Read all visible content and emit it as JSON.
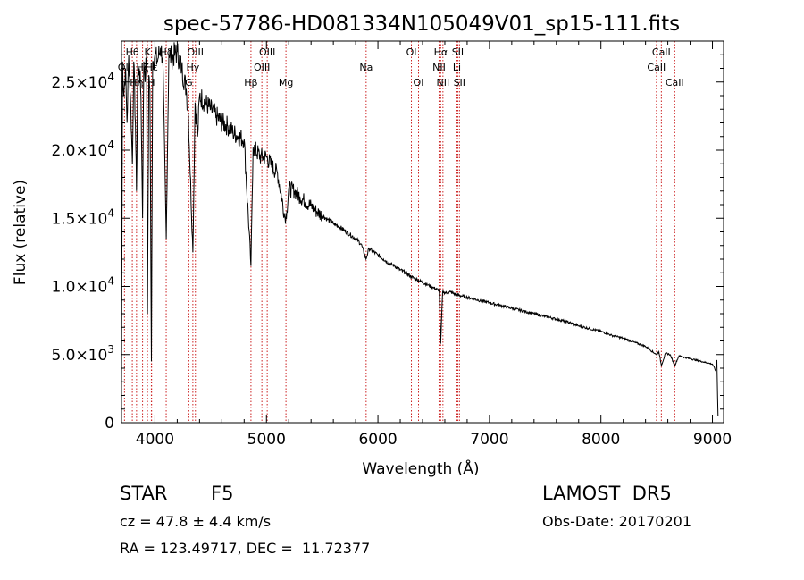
{
  "chart_data": {
    "type": "line",
    "title": "spec-57786-HD081334N105049V01_sp15-111.fits",
    "xlabel": "Wavelength (Å)",
    "ylabel": "Flux (relative)",
    "xlim": [
      3700,
      9100
    ],
    "ylim": [
      0,
      28000
    ],
    "x_ticks": [
      {
        "value": 4000,
        "label": "4000"
      },
      {
        "value": 5000,
        "label": "5000"
      },
      {
        "value": 6000,
        "label": "6000"
      },
      {
        "value": 7000,
        "label": "7000"
      },
      {
        "value": 8000,
        "label": "8000"
      },
      {
        "value": 9000,
        "label": "9000"
      }
    ],
    "y_ticks": [
      {
        "value": 0,
        "mant": "0",
        "exp": ""
      },
      {
        "value": 5000,
        "mant": "5.0×10",
        "exp": "3"
      },
      {
        "value": 10000,
        "mant": "1.0×10",
        "exp": "4"
      },
      {
        "value": 15000,
        "mant": "1.5×10",
        "exp": "4"
      },
      {
        "value": 20000,
        "mant": "2.0×10",
        "exp": "4"
      },
      {
        "value": 25000,
        "mant": "2.5×10",
        "exp": "4"
      }
    ],
    "series": [
      {
        "color": "#000000",
        "points": [
          [
            3700,
            2500
          ],
          [
            3710,
            26500
          ],
          [
            3720,
            24000
          ],
          [
            3735,
            26000
          ],
          [
            3750,
            22000
          ],
          [
            3765,
            27000
          ],
          [
            3780,
            24000
          ],
          [
            3798,
            19000
          ],
          [
            3810,
            26500
          ],
          [
            3825,
            22000
          ],
          [
            3835,
            17000
          ],
          [
            3845,
            25500
          ],
          [
            3860,
            26000
          ],
          [
            3875,
            24000
          ],
          [
            3889,
            15000
          ],
          [
            3900,
            26500
          ],
          [
            3915,
            25500
          ],
          [
            3925,
            27000
          ],
          [
            3933,
            8000
          ],
          [
            3945,
            25500
          ],
          [
            3955,
            24500
          ],
          [
            3968,
            4500
          ],
          [
            3980,
            26500
          ],
          [
            4000,
            27000
          ],
          [
            4020,
            26500
          ],
          [
            4050,
            27500
          ],
          [
            4070,
            26800
          ],
          [
            4101,
            13500
          ],
          [
            4125,
            27000
          ],
          [
            4150,
            26800
          ],
          [
            4200,
            27200
          ],
          [
            4240,
            26000
          ],
          [
            4280,
            24500
          ],
          [
            4300,
            22500
          ],
          [
            4340,
            12500
          ],
          [
            4360,
            23500
          ],
          [
            4383,
            21000
          ],
          [
            4400,
            24000
          ],
          [
            4450,
            23500
          ],
          [
            4500,
            23000
          ],
          [
            4550,
            22500
          ],
          [
            4600,
            22000
          ],
          [
            4650,
            21800
          ],
          [
            4700,
            21300
          ],
          [
            4750,
            21000
          ],
          [
            4800,
            20800
          ],
          [
            4861,
            11500
          ],
          [
            4880,
            20200
          ],
          [
            4900,
            20000
          ],
          [
            4950,
            19500
          ],
          [
            5000,
            19500
          ],
          [
            5050,
            18800
          ],
          [
            5100,
            18300
          ],
          [
            5167,
            15000
          ],
          [
            5183,
            15500
          ],
          [
            5200,
            17200
          ],
          [
            5250,
            17000
          ],
          [
            5300,
            16600
          ],
          [
            5350,
            16200
          ],
          [
            5400,
            15900
          ],
          [
            5450,
            15500
          ],
          [
            5500,
            15200
          ],
          [
            5550,
            14900
          ],
          [
            5600,
            14600
          ],
          [
            5650,
            14400
          ],
          [
            5700,
            14100
          ],
          [
            5750,
            13800
          ],
          [
            5800,
            13500
          ],
          [
            5850,
            13100
          ],
          [
            5893,
            12000
          ],
          [
            5920,
            12800
          ],
          [
            5950,
            12600
          ],
          [
            6000,
            12300
          ],
          [
            6050,
            12000
          ],
          [
            6100,
            11700
          ],
          [
            6150,
            11500
          ],
          [
            6200,
            11200
          ],
          [
            6250,
            11000
          ],
          [
            6300,
            10700
          ],
          [
            6350,
            10500
          ],
          [
            6400,
            10300
          ],
          [
            6450,
            10100
          ],
          [
            6500,
            9900
          ],
          [
            6550,
            9700
          ],
          [
            6563,
            5800
          ],
          [
            6580,
            9600
          ],
          [
            6620,
            9500
          ],
          [
            6650,
            9600
          ],
          [
            6700,
            9400
          ],
          [
            6750,
            9300
          ],
          [
            6800,
            9200
          ],
          [
            6900,
            9000
          ],
          [
            7000,
            8800
          ],
          [
            7100,
            8600
          ],
          [
            7200,
            8400
          ],
          [
            7300,
            8200
          ],
          [
            7400,
            8000
          ],
          [
            7500,
            7800
          ],
          [
            7600,
            7600
          ],
          [
            7700,
            7400
          ],
          [
            7800,
            7100
          ],
          [
            7900,
            6900
          ],
          [
            8000,
            6700
          ],
          [
            8100,
            6400
          ],
          [
            8200,
            6200
          ],
          [
            8300,
            5900
          ],
          [
            8400,
            5600
          ],
          [
            8498,
            5000
          ],
          [
            8520,
            5200
          ],
          [
            8542,
            4200
          ],
          [
            8580,
            5100
          ],
          [
            8620,
            5000
          ],
          [
            8662,
            4200
          ],
          [
            8700,
            4900
          ],
          [
            8800,
            4700
          ],
          [
            8900,
            4500
          ],
          [
            9000,
            4300
          ],
          [
            9030,
            3800
          ],
          [
            9040,
            4600
          ],
          [
            9050,
            500
          ]
        ]
      }
    ],
    "lines": [
      {
        "name": "OII",
        "wave": 3727,
        "row": 1
      },
      {
        "name": "Hθ",
        "wave": 3797,
        "row": 0
      },
      {
        "name": "Hη",
        "wave": 3835,
        "row": 2
      },
      {
        "name": "Hζ",
        "wave": 3889,
        "row": 1
      },
      {
        "name": "K",
        "wave": 3933,
        "row": 0
      },
      {
        "name": "H",
        "wave": 3968,
        "row": 2
      },
      {
        "name": "Hε",
        "wave": 3970,
        "row": 1
      },
      {
        "name": "Hδ",
        "wave": 4101,
        "row": 0
      },
      {
        "name": "G",
        "wave": 4304,
        "row": 2
      },
      {
        "name": "Hγ",
        "wave": 4340,
        "row": 1
      },
      {
        "name": "OIII",
        "wave": 4363,
        "row": 0
      },
      {
        "name": "Hβ",
        "wave": 4861,
        "row": 2
      },
      {
        "name": "OIII",
        "wave": 4959,
        "row": 1
      },
      {
        "name": "OIII",
        "wave": 5007,
        "row": 0
      },
      {
        "name": "Mg",
        "wave": 5175,
        "row": 2
      },
      {
        "name": "Na",
        "wave": 5894,
        "row": 1
      },
      {
        "name": "OI",
        "wave": 6300,
        "row": 0
      },
      {
        "name": "OI",
        "wave": 6364,
        "row": 2
      },
      {
        "name": "NII",
        "wave": 6548,
        "row": 1
      },
      {
        "name": "Hα",
        "wave": 6563,
        "row": 0
      },
      {
        "name": "NII",
        "wave": 6583,
        "row": 2
      },
      {
        "name": "Li",
        "wave": 6708,
        "row": 1
      },
      {
        "name": "SII",
        "wave": 6716,
        "row": 0
      },
      {
        "name": "SII",
        "wave": 6731,
        "row": 2
      },
      {
        "name": "CaII",
        "wave": 8498,
        "row": 1
      },
      {
        "name": "CaII",
        "wave": 8542,
        "row": 0
      },
      {
        "name": "CaII",
        "wave": 8662,
        "row": 2
      }
    ],
    "colors": {
      "axis": "#000000",
      "spectrum": "#000000",
      "line_marker": "#cc2222"
    }
  },
  "info": {
    "star_label": "STAR",
    "subclass": "F5",
    "cz": "cz = 47.8 ± 4.4 km/s",
    "radec": "RA = 123.49717, DEC =  11.72377",
    "survey": "LAMOST  DR5",
    "obs_date": "Obs-Date: 20170201"
  }
}
